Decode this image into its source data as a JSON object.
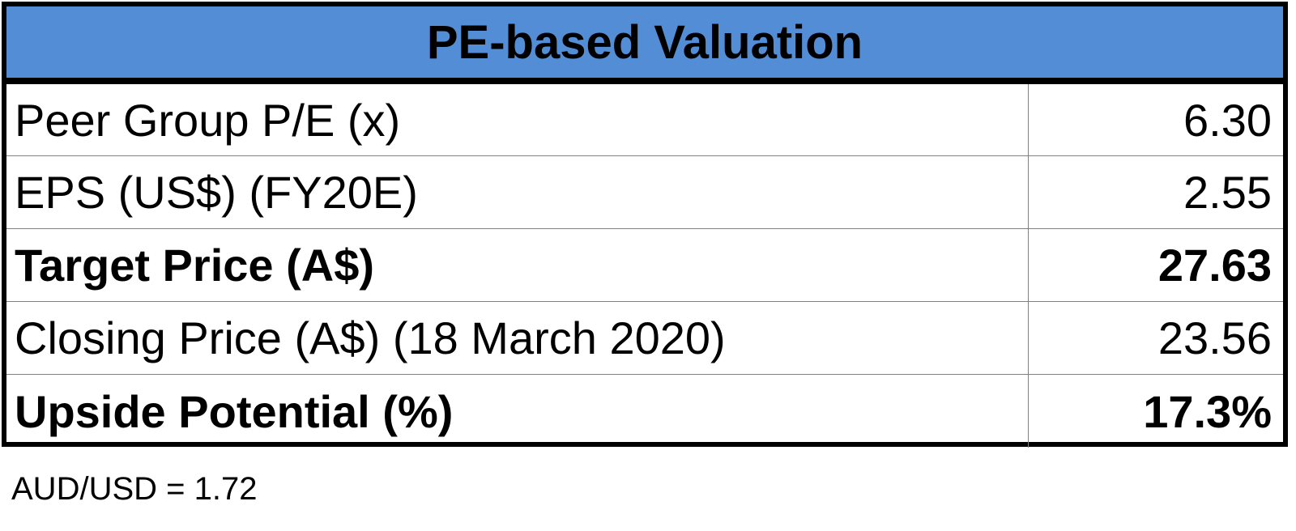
{
  "table": {
    "title": "PE-based Valuation",
    "rows": [
      {
        "label": "Peer Group P/E (x)",
        "value": "6.30",
        "bold": false
      },
      {
        "label": "EPS (US$) (FY20E)",
        "value": "2.55",
        "bold": false
      },
      {
        "label": "Target Price (A$)",
        "value": "27.63",
        "bold": true
      },
      {
        "label": "Closing Price (A$) (18 March 2020)",
        "value": "23.56",
        "bold": false
      },
      {
        "label": "Upside Potential (%)",
        "value": "17.3%",
        "bold": true
      }
    ]
  },
  "footnote": "AUD/USD = 1.72",
  "colors": {
    "header_background": "#538dd5",
    "border": "#000000",
    "gridline": "#808080"
  }
}
